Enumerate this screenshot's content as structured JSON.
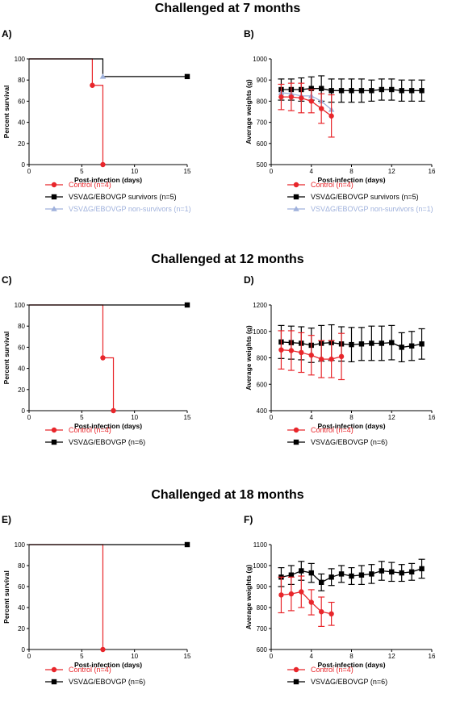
{
  "sections": [
    {
      "title": "Challenged at 7 months"
    },
    {
      "title": "Challenged at 12 months"
    },
    {
      "title": "Challenged at 18 months"
    }
  ],
  "colors": {
    "control": "#e8262b",
    "vaccine": "#000000",
    "nonsurvivor": "#9fb1dc"
  },
  "chart_data": [
    {
      "panel": "A)",
      "type": "line",
      "step": true,
      "xlabel": "Post-infection (days)",
      "ylabel": "Percent survival",
      "xlim": [
        0,
        15
      ],
      "ylim": [
        0,
        100
      ],
      "xticks": [
        0,
        5,
        10,
        15
      ],
      "yticks": [
        0,
        20,
        40,
        60,
        80,
        100
      ],
      "series": [
        {
          "name": "Control (n=4)",
          "color": "#e8262b",
          "marker": "circle",
          "line": [
            [
              0,
              100
            ],
            [
              6,
              100
            ],
            [
              6,
              75
            ],
            [
              7,
              75
            ],
            [
              7,
              0
            ]
          ],
          "points": [
            [
              6,
              75
            ],
            [
              7,
              0
            ]
          ]
        },
        {
          "name": "VSVΔG/EBOVGP survivors (n=5)",
          "color": "#000000",
          "marker": "square",
          "line": [
            [
              0,
              100
            ],
            [
              7,
              100
            ],
            [
              7,
              83.3
            ],
            [
              15,
              83.3
            ]
          ],
          "points": [
            [
              15,
              83.3
            ]
          ]
        },
        {
          "name": "VSVΔG/EBOVGP non-survivors (n=1)",
          "color": "#9fb1dc",
          "marker": "triangle",
          "line": [],
          "points": [
            [
              7,
              83.3
            ]
          ]
        }
      ]
    },
    {
      "panel": "B)",
      "type": "line",
      "errorbars": true,
      "xlabel": "Post-infection (days)",
      "ylabel": "Average weights (g)",
      "xlim": [
        0,
        16
      ],
      "ylim": [
        500,
        1000
      ],
      "xticks": [
        0,
        4,
        8,
        12,
        16
      ],
      "yticks": [
        500,
        600,
        700,
        800,
        900,
        1000
      ],
      "series": [
        {
          "name": "VSVΔG/EBOVGP survivors (n=5)",
          "color": "#000000",
          "marker": "square",
          "x": [
            1,
            2,
            3,
            4,
            5,
            6,
            7,
            8,
            9,
            10,
            11,
            12,
            13,
            14,
            15
          ],
          "y": [
            855,
            855,
            855,
            860,
            860,
            850,
            850,
            850,
            850,
            850,
            855,
            855,
            850,
            850,
            850
          ],
          "err": [
            50,
            50,
            55,
            55,
            60,
            55,
            55,
            55,
            55,
            50,
            50,
            50,
            50,
            50,
            50
          ]
        },
        {
          "name": "VSVΔG/EBOVGP non-survivors (n=1)",
          "color": "#9fb1dc",
          "marker": "triangle",
          "x": [
            1,
            2,
            3,
            4,
            5,
            6
          ],
          "y": [
            840,
            835,
            825,
            825,
            800,
            760
          ],
          "err": [
            0,
            0,
            0,
            0,
            0,
            0
          ]
        },
        {
          "name": "Control (n=4)",
          "color": "#e8262b",
          "marker": "circle",
          "x": [
            1,
            2,
            3,
            4,
            5,
            6
          ],
          "y": [
            820,
            820,
            815,
            800,
            765,
            730
          ],
          "err": [
            60,
            65,
            70,
            55,
            70,
            100
          ]
        }
      ]
    },
    {
      "panel": "C)",
      "type": "line",
      "step": true,
      "xlabel": "Post-infection (days)",
      "ylabel": "Percent survival",
      "xlim": [
        0,
        15
      ],
      "ylim": [
        0,
        100
      ],
      "xticks": [
        0,
        5,
        10,
        15
      ],
      "yticks": [
        0,
        20,
        40,
        60,
        80,
        100
      ],
      "series": [
        {
          "name": "Control (n=4)",
          "color": "#e8262b",
          "marker": "circle",
          "line": [
            [
              0,
              100
            ],
            [
              7,
              100
            ],
            [
              7,
              50
            ],
            [
              8,
              50
            ],
            [
              8,
              0
            ]
          ],
          "points": [
            [
              7,
              50
            ],
            [
              8,
              0
            ]
          ]
        },
        {
          "name": "VSVΔG/EBOVGP (n=6)",
          "color": "#000000",
          "marker": "square",
          "line": [
            [
              0,
              100
            ],
            [
              15,
              100
            ]
          ],
          "points": [
            [
              15,
              100
            ]
          ]
        }
      ]
    },
    {
      "panel": "D)",
      "type": "line",
      "errorbars": true,
      "xlabel": "Post-infection (days)",
      "ylabel": "Average weights (g)",
      "xlim": [
        0,
        16
      ],
      "ylim": [
        400,
        1200
      ],
      "xticks": [
        0,
        4,
        8,
        12,
        16
      ],
      "yticks": [
        400,
        600,
        800,
        1000,
        1200
      ],
      "series": [
        {
          "name": "VSVΔG/EBOVGP (n=6)",
          "color": "#000000",
          "marker": "square",
          "x": [
            1,
            2,
            3,
            4,
            5,
            6,
            7,
            8,
            9,
            10,
            11,
            12,
            13,
            14,
            15
          ],
          "y": [
            920,
            915,
            910,
            895,
            910,
            915,
            905,
            900,
            905,
            910,
            910,
            915,
            880,
            890,
            905
          ],
          "err": [
            125,
            125,
            125,
            130,
            135,
            135,
            130,
            130,
            125,
            130,
            130,
            130,
            110,
            110,
            115
          ]
        },
        {
          "name": "Control (n=4)",
          "color": "#e8262b",
          "marker": "circle",
          "x": [
            1,
            2,
            3,
            4,
            5,
            6,
            7
          ],
          "y": [
            860,
            855,
            840,
            820,
            790,
            790,
            810
          ],
          "err": [
            145,
            150,
            150,
            150,
            140,
            140,
            175
          ]
        }
      ]
    },
    {
      "panel": "E)",
      "type": "line",
      "step": true,
      "xlabel": "Post-infection (days)",
      "ylabel": "Percent survival",
      "xlim": [
        0,
        15
      ],
      "ylim": [
        0,
        100
      ],
      "xticks": [
        0,
        5,
        10,
        15
      ],
      "yticks": [
        0,
        20,
        40,
        60,
        80,
        100
      ],
      "series": [
        {
          "name": "Control (n=4)",
          "color": "#e8262b",
          "marker": "circle",
          "line": [
            [
              0,
              100
            ],
            [
              7,
              100
            ],
            [
              7,
              0
            ]
          ],
          "points": [
            [
              7,
              0
            ]
          ]
        },
        {
          "name": "VSVΔG/EBOVGP (n=6)",
          "color": "#000000",
          "marker": "square",
          "line": [
            [
              0,
              100
            ],
            [
              15,
              100
            ]
          ],
          "points": [
            [
              15,
              100
            ]
          ]
        }
      ]
    },
    {
      "panel": "F)",
      "type": "line",
      "errorbars": true,
      "xlabel": "Post-infection (days)",
      "ylabel": "Average weights (g)",
      "xlim": [
        0,
        16
      ],
      "ylim": [
        600,
        1100
      ],
      "xticks": [
        0,
        4,
        8,
        12,
        16
      ],
      "yticks": [
        600,
        700,
        800,
        900,
        1000,
        1100
      ],
      "series": [
        {
          "name": "VSVΔG/EBOVGP (n=6)",
          "color": "#000000",
          "marker": "square",
          "x": [
            1,
            2,
            3,
            4,
            5,
            6,
            7,
            8,
            9,
            10,
            11,
            12,
            13,
            14,
            15
          ],
          "y": [
            945,
            955,
            975,
            965,
            920,
            945,
            960,
            950,
            955,
            960,
            975,
            970,
            965,
            970,
            985
          ],
          "err": [
            45,
            45,
            45,
            45,
            40,
            40,
            40,
            40,
            45,
            45,
            45,
            45,
            40,
            40,
            45
          ]
        },
        {
          "name": "Control (n=4)",
          "color": "#e8262b",
          "marker": "circle",
          "x": [
            1,
            2,
            3,
            4,
            5,
            6
          ],
          "y": [
            860,
            865,
            875,
            825,
            780,
            770
          ],
          "err": [
            85,
            80,
            75,
            60,
            70,
            55
          ]
        }
      ]
    }
  ],
  "legends": [
    {
      "items": [
        {
          "label": "Control (n=4)",
          "color": "#e8262b",
          "marker": "circle"
        },
        {
          "label": "VSVΔG/EBOVGP survivors (n=5)",
          "color": "#000000",
          "marker": "square"
        },
        {
          "label": "VSVΔG/EBOVGP non-survivors (n=1)",
          "color": "#9fb1dc",
          "marker": "triangle"
        }
      ]
    },
    {
      "items": [
        {
          "label": "Control (n=4)",
          "color": "#e8262b",
          "marker": "circle"
        },
        {
          "label": "VSVΔG/EBOVGP survivors (n=5)",
          "color": "#000000",
          "marker": "square"
        },
        {
          "label": "VSVΔG/EBOVGP non-survivors (n=1)",
          "color": "#9fb1dc",
          "marker": "triangle"
        }
      ]
    },
    {
      "items": [
        {
          "label": "Control (n=4)",
          "color": "#e8262b",
          "marker": "circle"
        },
        {
          "label": "VSVΔG/EBOVGP (n=6)",
          "color": "#000000",
          "marker": "square"
        }
      ]
    },
    {
      "items": [
        {
          "label": "Control (n=4)",
          "color": "#e8262b",
          "marker": "circle"
        },
        {
          "label": "VSVΔG/EBOVGP (n=6)",
          "color": "#000000",
          "marker": "square"
        }
      ]
    },
    {
      "items": [
        {
          "label": "Control (n=4)",
          "color": "#e8262b",
          "marker": "circle"
        },
        {
          "label": "VSVΔG/EBOVGP (n=6)",
          "color": "#000000",
          "marker": "square"
        }
      ]
    },
    {
      "items": [
        {
          "label": "Control (n=4)",
          "color": "#e8262b",
          "marker": "circle"
        },
        {
          "label": "VSVΔG/EBOVGP (n=6)",
          "color": "#000000",
          "marker": "square"
        }
      ]
    }
  ]
}
